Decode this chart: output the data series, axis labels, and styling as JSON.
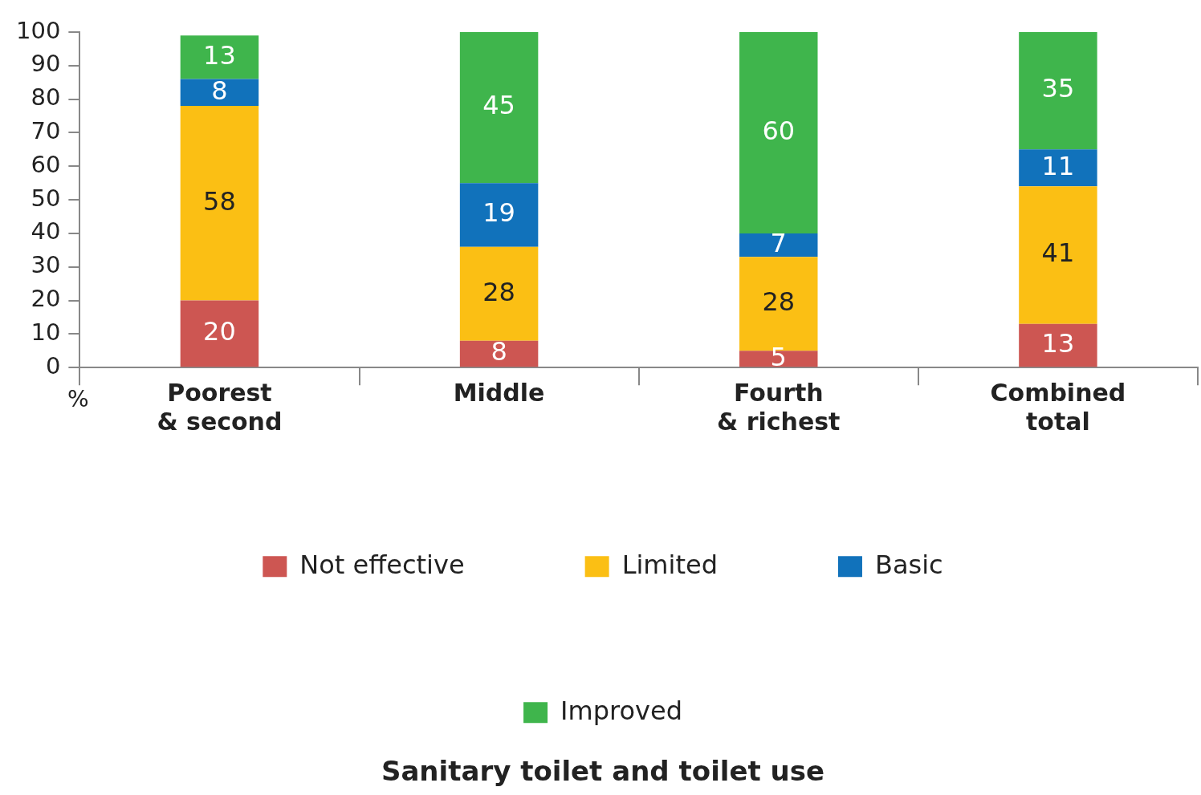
{
  "chart_data": {
    "type": "bar",
    "title": "Sanitary toilet and toilet use",
    "ylabel": "%",
    "stacked": true,
    "categories": [
      "Poorest\n& second",
      "Middle",
      "Fourth\n& richest",
      "Combined\ntotal"
    ],
    "series": [
      {
        "name": "Not effective",
        "color": "#cd5652",
        "values": [
          20,
          8,
          5,
          13
        ]
      },
      {
        "name": "Limited",
        "color": "#fbbf14",
        "values": [
          58,
          28,
          28,
          41
        ]
      },
      {
        "name": "Basic",
        "color": "#1172bb",
        "values": [
          8,
          19,
          7,
          11
        ]
      },
      {
        "name": "Improved",
        "color": "#3fb54c",
        "values": [
          13,
          45,
          60,
          35
        ]
      }
    ],
    "ylim": [
      0,
      100
    ],
    "yticks": [
      0,
      10,
      20,
      30,
      40,
      50,
      60,
      70,
      80,
      90,
      100
    ],
    "grid": false,
    "legend": "bottom",
    "data_labels": true
  }
}
